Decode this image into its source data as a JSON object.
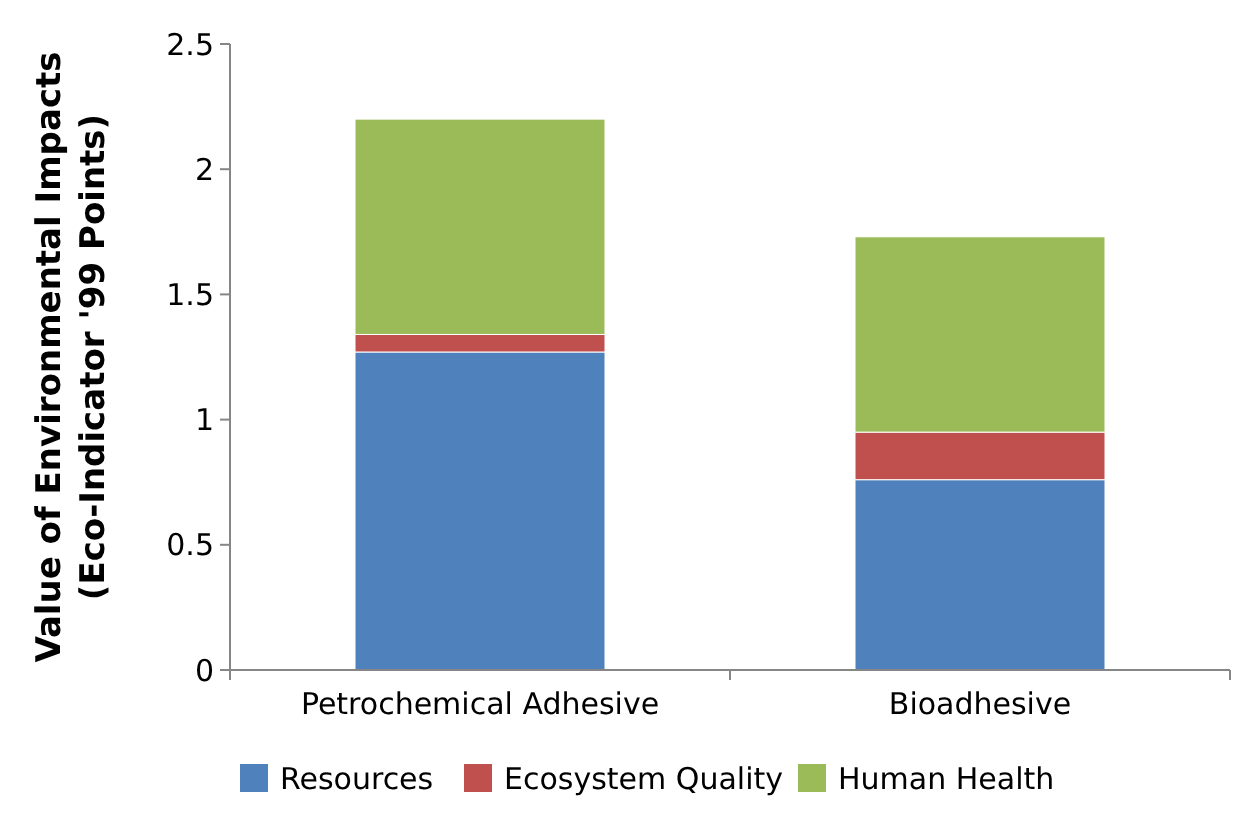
{
  "chart_data": {
    "type": "bar",
    "stacked": true,
    "ylabel": "Value of Environmental Impacts\n(Eco-Indicator '99 Points)",
    "categories": [
      "Petrochemical Adhesive",
      "Bioadhesive"
    ],
    "series": [
      {
        "name": "Resources",
        "color": "#4f81bd",
        "values": [
          1.27,
          0.76
        ]
      },
      {
        "name": "Ecosystem Quality",
        "color": "#c0504d",
        "values": [
          0.07,
          0.19
        ]
      },
      {
        "name": "Human Health",
        "color": "#9bbb59",
        "values": [
          0.86,
          0.78
        ]
      }
    ],
    "ylim": [
      0,
      2.5
    ],
    "yticks": [
      0,
      0.5,
      1,
      1.5,
      2,
      2.5
    ],
    "grid": false,
    "legend": "bottom"
  }
}
